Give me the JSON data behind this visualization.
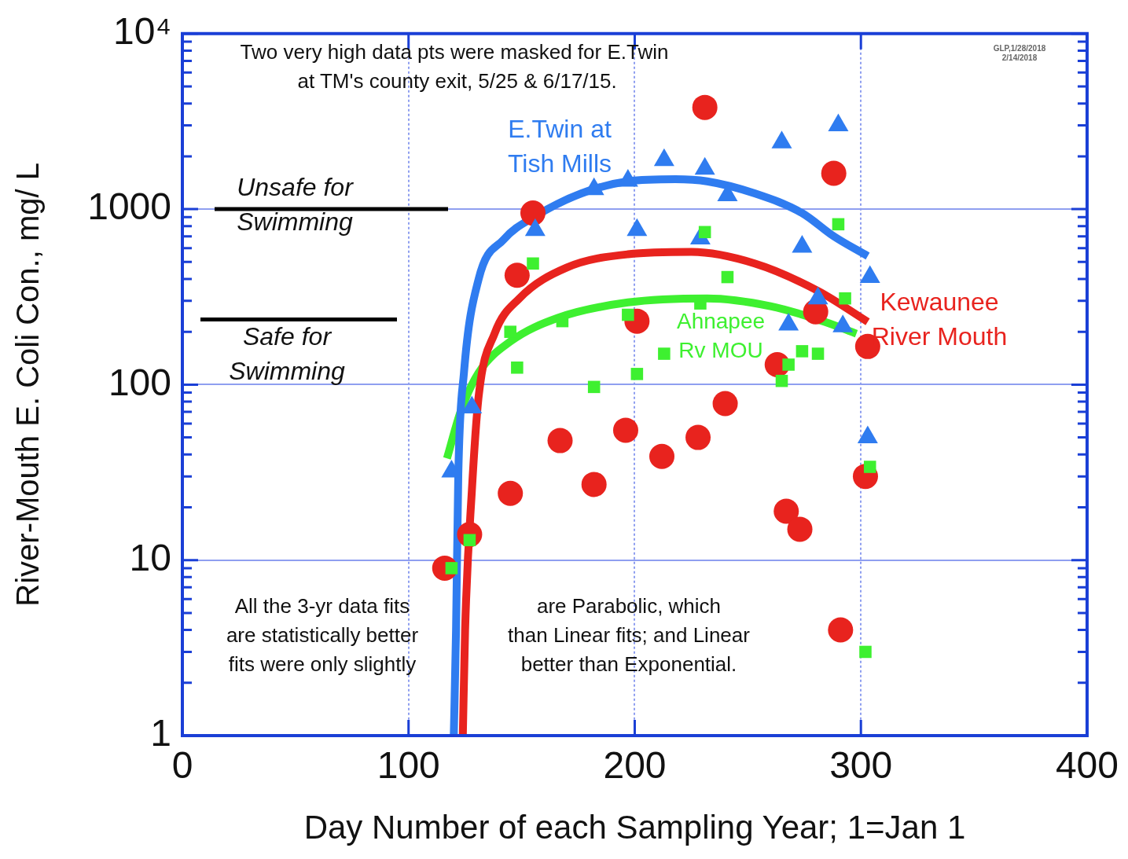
{
  "chart_data": {
    "type": "scatter",
    "xlabel": "Day Number of each Sampling Year; 1=Jan 1",
    "ylabel": "River-Mouth E. Coli Con., mg/ L",
    "log": "y",
    "grid": true,
    "legend": false,
    "xlim": [
      0,
      400
    ],
    "xticks": [
      0,
      100,
      200,
      300,
      400
    ],
    "ylim": [
      1,
      10000
    ],
    "yticks": [
      1,
      10,
      100,
      1000,
      {
        "value": 10000,
        "label": "10⁴"
      }
    ],
    "series": [
      {
        "name": "E.Twin at Tish Mills",
        "marker": "triangle",
        "color": "#2f7cf0",
        "x": [
          119,
          128,
          156,
          182,
          197,
          201,
          213,
          229,
          231,
          241,
          265,
          268,
          274,
          281,
          290,
          292,
          303,
          304
        ],
        "values": [
          32,
          74,
          760,
          1300,
          1450,
          760,
          1900,
          680,
          1700,
          1200,
          2400,
          220,
          610,
          310,
          3000,
          215,
          50,
          410
        ]
      },
      {
        "name": "Kewaunee River Mouth",
        "marker": "circle",
        "color": "#e8231e",
        "x": [
          116,
          127,
          145,
          148,
          155,
          167,
          182,
          196,
          201,
          212,
          228,
          231,
          240,
          263,
          267,
          273,
          280,
          288,
          291,
          302,
          303
        ],
        "values": [
          9,
          14,
          24,
          420,
          950,
          48,
          27,
          55,
          230,
          39,
          50,
          3800,
          78,
          130,
          19,
          15,
          260,
          1600,
          4,
          30,
          165
        ]
      },
      {
        "name": "Ahnapee Rv MOU",
        "marker": "square",
        "color": "#3ef030",
        "x": [
          119,
          127,
          145,
          148,
          155,
          168,
          182,
          197,
          201,
          213,
          229,
          231,
          241,
          265,
          268,
          274,
          281,
          290,
          293,
          302,
          304
        ],
        "values": [
          9,
          13,
          200,
          125,
          490,
          230,
          97,
          250,
          115,
          150,
          290,
          740,
          410,
          105,
          130,
          155,
          150,
          820,
          310,
          3,
          34
        ]
      },
      {
        "type": "line",
        "marker": "none",
        "color": "#2f7cf0",
        "x": [
          120,
          121,
          122,
          124.5,
          131,
          142,
          156,
          176.5,
          197,
          218,
          232,
          253,
          274,
          288,
          303
        ],
        "values": [
          1,
          4,
          31,
          117,
          400,
          670,
          910,
          1230,
          1440,
          1480,
          1440,
          1230,
          950,
          700,
          540
        ]
      },
      {
        "type": "line",
        "marker": "none",
        "color": "#e8231e",
        "x": [
          124,
          125,
          128,
          131,
          138,
          149,
          170,
          197,
          225,
          253,
          281,
          303
        ],
        "values": [
          1,
          4,
          25,
          86,
          195,
          310,
          465,
          553,
          570,
          490,
          342,
          228
        ]
      },
      {
        "type": "line",
        "marker": "none",
        "color": "#3ef030",
        "x": [
          117,
          123,
          131,
          145,
          166,
          197,
          232,
          260,
          284,
          298
        ],
        "values": [
          38,
          70,
          117,
          176,
          240,
          294,
          310,
          280,
          228,
          195
        ]
      }
    ],
    "ref_lines": [
      {
        "axis": "y",
        "value": 1000,
        "label": "Unsafe for\nSwimming",
        "color": "#000000"
      },
      {
        "axis": "y",
        "value": 235,
        "label": "Safe for\nSwimming",
        "color": "#000000"
      }
    ],
    "annotations": [
      "Two very high data pts were masked for E.Twin\n at TM's county exit, 5/25 & 6/17/15.",
      "GLP,1/28/2018\n2/14/2018",
      "All the 3-yr data fits\nare statistically better\nfits were only slightly",
      "are Parabolic, which\nthan Linear fits; and Linear\nbetter than Exponential."
    ]
  }
}
